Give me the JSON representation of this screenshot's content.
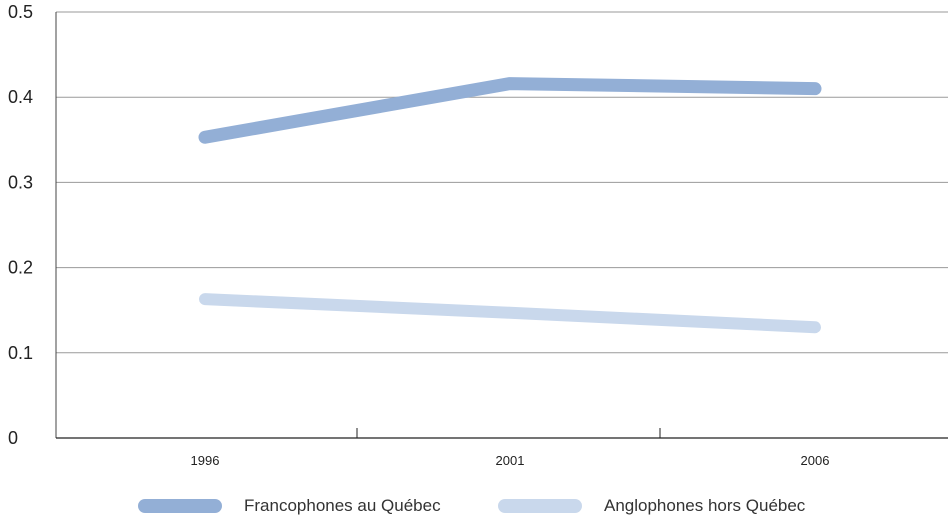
{
  "chart_data": {
    "type": "line",
    "categories": [
      "1996",
      "2001",
      "2006"
    ],
    "series": [
      {
        "name": "Francophones au Québec",
        "values": [
          0.353,
          0.416,
          0.41
        ],
        "color": "#93afd6"
      },
      {
        "name": "Anglophones hors Québec",
        "values": [
          0.163,
          0.147,
          0.13
        ],
        "color": "#c9d8ec"
      }
    ],
    "ylim": [
      0,
      0.5
    ],
    "yticks": [
      "0",
      "0.1",
      "0.2",
      "0.3",
      "0.4",
      "0.5"
    ],
    "grid": true,
    "legend_position": "bottom"
  }
}
